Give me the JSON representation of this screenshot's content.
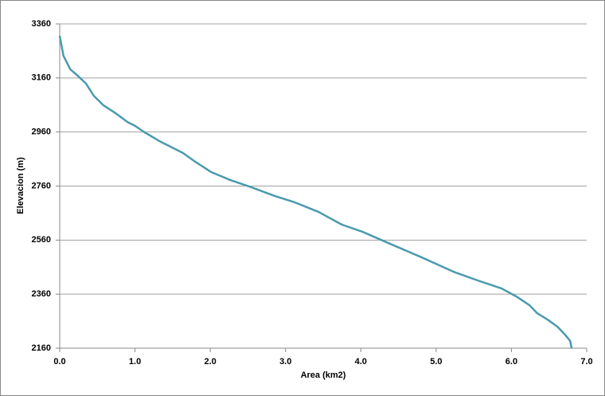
{
  "chart_data": {
    "type": "line",
    "x_label": "Area (km2)",
    "y_label": "Elevacion (m)",
    "x": [
      0,
      0.02,
      0.05,
      0.14,
      0.24,
      0.35,
      0.45,
      0.58,
      0.74,
      0.9,
      1.0,
      1.11,
      1.32,
      1.64,
      1.8,
      2.01,
      2.27,
      2.54,
      2.86,
      3.12,
      3.44,
      3.75,
      4.02,
      4.39,
      4.81,
      5.23,
      5.55,
      5.87,
      6.08,
      6.24,
      6.34,
      6.48,
      6.61,
      6.71,
      6.78,
      6.8
    ],
    "values": [
      3316,
      3286,
      3242,
      3192,
      3168,
      3139,
      3095,
      3059,
      3030,
      2997,
      2983,
      2962,
      2927,
      2882,
      2850,
      2812,
      2782,
      2756,
      2723,
      2700,
      2664,
      2617,
      2591,
      2546,
      2496,
      2443,
      2411,
      2381,
      2349,
      2319,
      2290,
      2266,
      2240,
      2211,
      2187,
      2160
    ],
    "color": "#4a9aae",
    "xlim": [
      0,
      7
    ],
    "ylim": [
      2160,
      3360
    ],
    "xticks": [
      {
        "value": 0,
        "label": "0.0"
      },
      {
        "value": 1,
        "label": "1.0"
      },
      {
        "value": 2,
        "label": "2.0"
      },
      {
        "value": 3,
        "label": "3.0"
      },
      {
        "value": 4,
        "label": "4.0"
      },
      {
        "value": 5,
        "label": "5.0"
      },
      {
        "value": 6,
        "label": "6.0"
      },
      {
        "value": 7,
        "label": "7.0"
      }
    ],
    "yticks": [
      2160,
      2360,
      2560,
      2760,
      2960,
      3160,
      3360
    ],
    "grid": true
  }
}
